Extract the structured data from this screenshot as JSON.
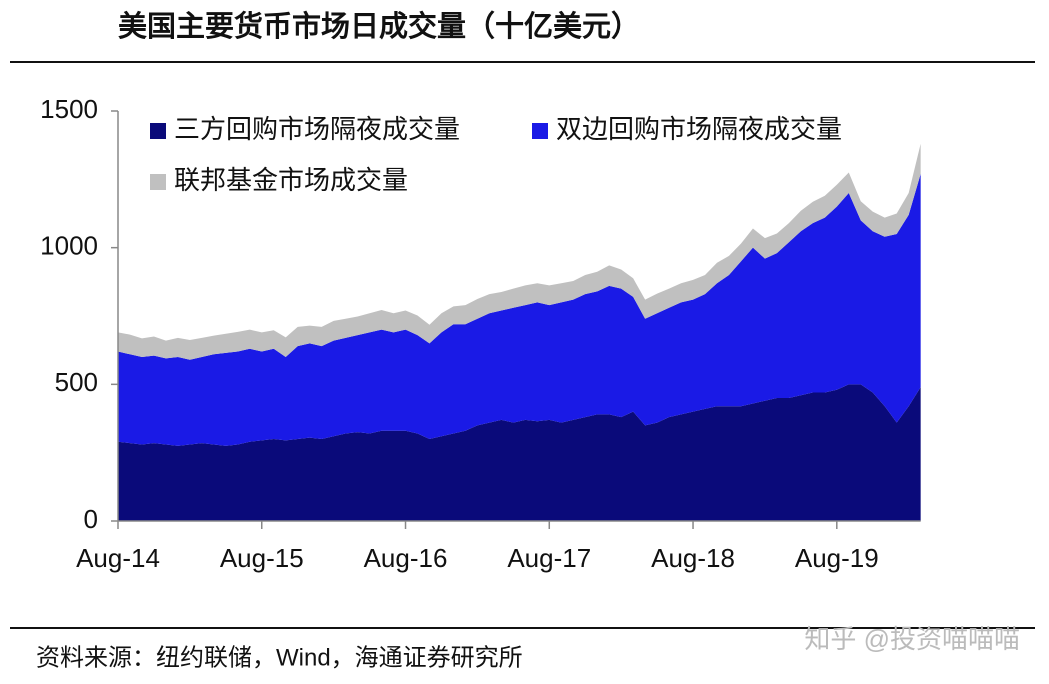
{
  "chart_data": {
    "type": "stacked_area",
    "title": "美国主要货币市场日成交量（十亿美元）",
    "source": "资料来源：纽约联储，Wind，海通证券研究所",
    "watermark": "知乎 @投资喵喵喵",
    "x": [
      "Aug-14",
      "Sep-14",
      "Oct-14",
      "Nov-14",
      "Dec-14",
      "Jan-15",
      "Feb-15",
      "Mar-15",
      "Apr-15",
      "May-15",
      "Jun-15",
      "Jul-15",
      "Aug-15",
      "Sep-15",
      "Oct-15",
      "Nov-15",
      "Dec-15",
      "Jan-16",
      "Feb-16",
      "Mar-16",
      "Apr-16",
      "May-16",
      "Jun-16",
      "Jul-16",
      "Aug-16",
      "Sep-16",
      "Oct-16",
      "Nov-16",
      "Dec-16",
      "Jan-17",
      "Feb-17",
      "Mar-17",
      "Apr-17",
      "May-17",
      "Jun-17",
      "Jul-17",
      "Aug-17",
      "Sep-17",
      "Oct-17",
      "Nov-17",
      "Dec-17",
      "Jan-18",
      "Feb-18",
      "Mar-18",
      "Apr-18",
      "May-18",
      "Jun-18",
      "Jul-18",
      "Aug-18",
      "Sep-18",
      "Oct-18",
      "Nov-18",
      "Dec-18",
      "Jan-19",
      "Feb-19",
      "Mar-19",
      "Apr-19",
      "May-19",
      "Jun-19",
      "Jul-19",
      "Aug-19",
      "Sep-19",
      "Oct-19",
      "Nov-19",
      "Dec-19",
      "Jan-20",
      "Feb-20",
      "Mar-20"
    ],
    "xticks": [
      "Aug-14",
      "Aug-15",
      "Aug-16",
      "Aug-17",
      "Aug-18",
      "Aug-19"
    ],
    "ylim": [
      0,
      1500
    ],
    "yticks": [
      0,
      500,
      1000,
      1500
    ],
    "legend": "top-left",
    "series": [
      {
        "name": "三方回购市场隔夜成交量",
        "color": "#0a0a7a",
        "values": [
          290,
          285,
          280,
          285,
          280,
          275,
          280,
          285,
          280,
          275,
          280,
          290,
          295,
          300,
          295,
          300,
          305,
          300,
          310,
          320,
          325,
          320,
          330,
          330,
          330,
          320,
          300,
          310,
          320,
          330,
          350,
          360,
          370,
          360,
          370,
          365,
          370,
          360,
          370,
          380,
          390,
          390,
          380,
          400,
          350,
          360,
          380,
          390,
          400,
          410,
          420,
          420,
          420,
          430,
          440,
          450,
          450,
          460,
          470,
          470,
          480,
          500,
          500,
          470,
          420,
          360,
          420,
          490
        ]
      },
      {
        "name": "双边回购市场隔夜成交量",
        "color": "#1a1ae6",
        "values": [
          330,
          325,
          320,
          320,
          315,
          325,
          310,
          315,
          330,
          340,
          340,
          340,
          325,
          330,
          305,
          340,
          345,
          340,
          350,
          350,
          355,
          370,
          370,
          360,
          370,
          360,
          350,
          380,
          400,
          390,
          390,
          400,
          400,
          420,
          420,
          435,
          420,
          440,
          440,
          450,
          450,
          470,
          470,
          420,
          390,
          400,
          400,
          410,
          410,
          420,
          450,
          480,
          530,
          570,
          520,
          530,
          570,
          600,
          620,
          640,
          670,
          700,
          600,
          590,
          620,
          690,
          700,
          780
        ]
      },
      {
        "name": "联邦基金市场成交量",
        "color": "#c0c0c0",
        "values": [
          70,
          72,
          68,
          70,
          65,
          70,
          72,
          70,
          68,
          70,
          72,
          70,
          70,
          68,
          72,
          70,
          65,
          70,
          72,
          70,
          68,
          70,
          72,
          70,
          70,
          72,
          68,
          70,
          65,
          70,
          72,
          70,
          68,
          70,
          72,
          70,
          72,
          70,
          68,
          70,
          72,
          75,
          70,
          68,
          70,
          72,
          70,
          70,
          72,
          70,
          75,
          70,
          65,
          70,
          75,
          72,
          70,
          75,
          78,
          80,
          80,
          75,
          70,
          72,
          70,
          75,
          80,
          110
        ]
      }
    ]
  }
}
